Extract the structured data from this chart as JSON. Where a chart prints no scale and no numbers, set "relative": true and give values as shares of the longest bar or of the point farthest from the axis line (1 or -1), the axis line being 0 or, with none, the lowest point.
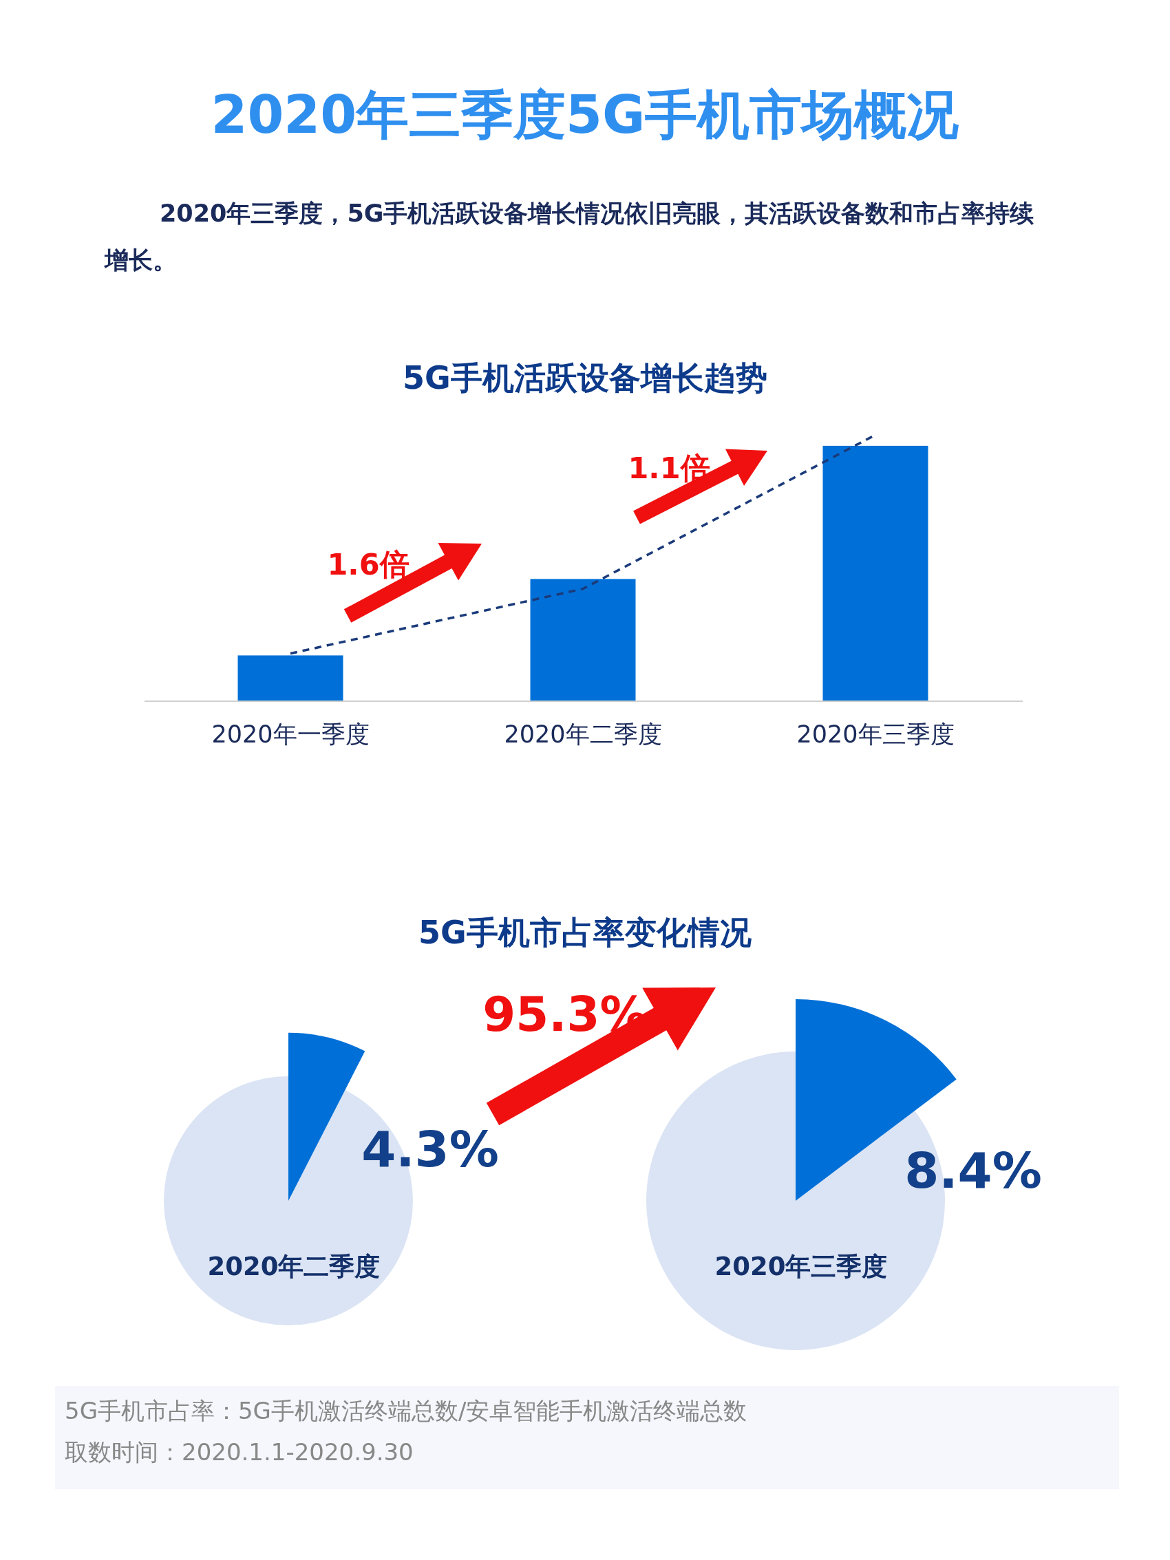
{
  "chart_data": [
    {
      "type": "other",
      "title": "2020年三季度5G手机市场概况",
      "subtitle": "2020年三季度，5G手机活跃设备增长情况依旧亮眼，其活跃设备数和市占率持续增长。"
    },
    {
      "type": "bar",
      "title": "5G手机活跃设备增长趋势",
      "categories": [
        "2020年一季度",
        "2020年二季度",
        "2020年三季度"
      ],
      "relative": true,
      "series": [
        {
          "type": "bar",
          "color": "#0070d8",
          "values": [
            0.172,
            0.459,
            0.959
          ]
        },
        {
          "type": "line",
          "color": "#1a3a7a",
          "line_style": "dashed",
          "values": [
            0.179,
            0.422,
            1
          ]
        }
      ],
      "annotations": [
        "1.6倍",
        "1.1倍"
      ]
    },
    {
      "type": "other",
      "title": "5G手机市占率变化情况",
      "categories": [
        "2020年二季度",
        "2020年三季度"
      ],
      "series": [
        {
          "color": "#0070d8",
          "values": [
            4.3,
            8.4
          ],
          "value_labels": [
            "4.3%",
            "8.4%"
          ]
        }
      ],
      "annotations": [
        "95.3%",
        "5G手机市占率：5G手机激活终端总数/安卓智能手机激活终端总数",
        "取数时间：2020.1.1-2020.9.30"
      ]
    }
  ]
}
